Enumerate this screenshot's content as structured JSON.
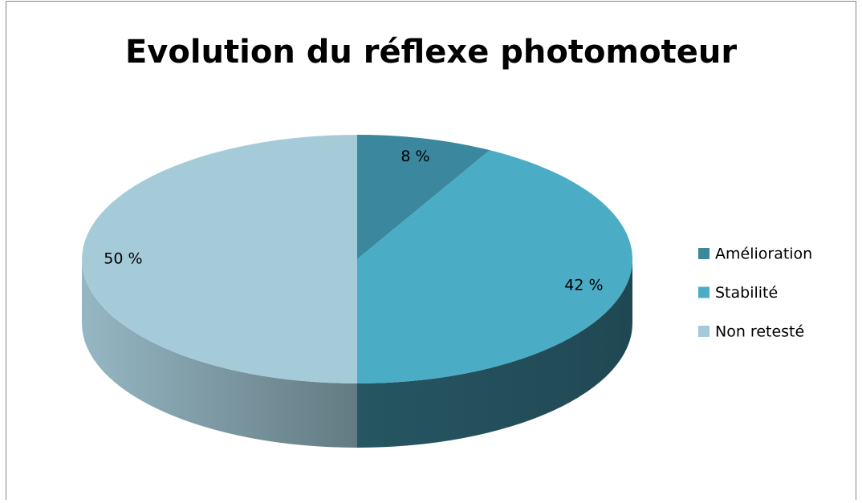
{
  "chart_data": {
    "type": "pie",
    "title": "Evolution du réflexe photomoteur",
    "categories": [
      "Amélioration",
      "Stabilité",
      "Non retesté"
    ],
    "values": [
      8,
      42,
      50
    ],
    "value_labels": [
      "8 %",
      "42 %",
      "50 %"
    ],
    "colors": [
      "#3a879e",
      "#4bacc6",
      "#a5cbd9"
    ],
    "legend": "right"
  }
}
